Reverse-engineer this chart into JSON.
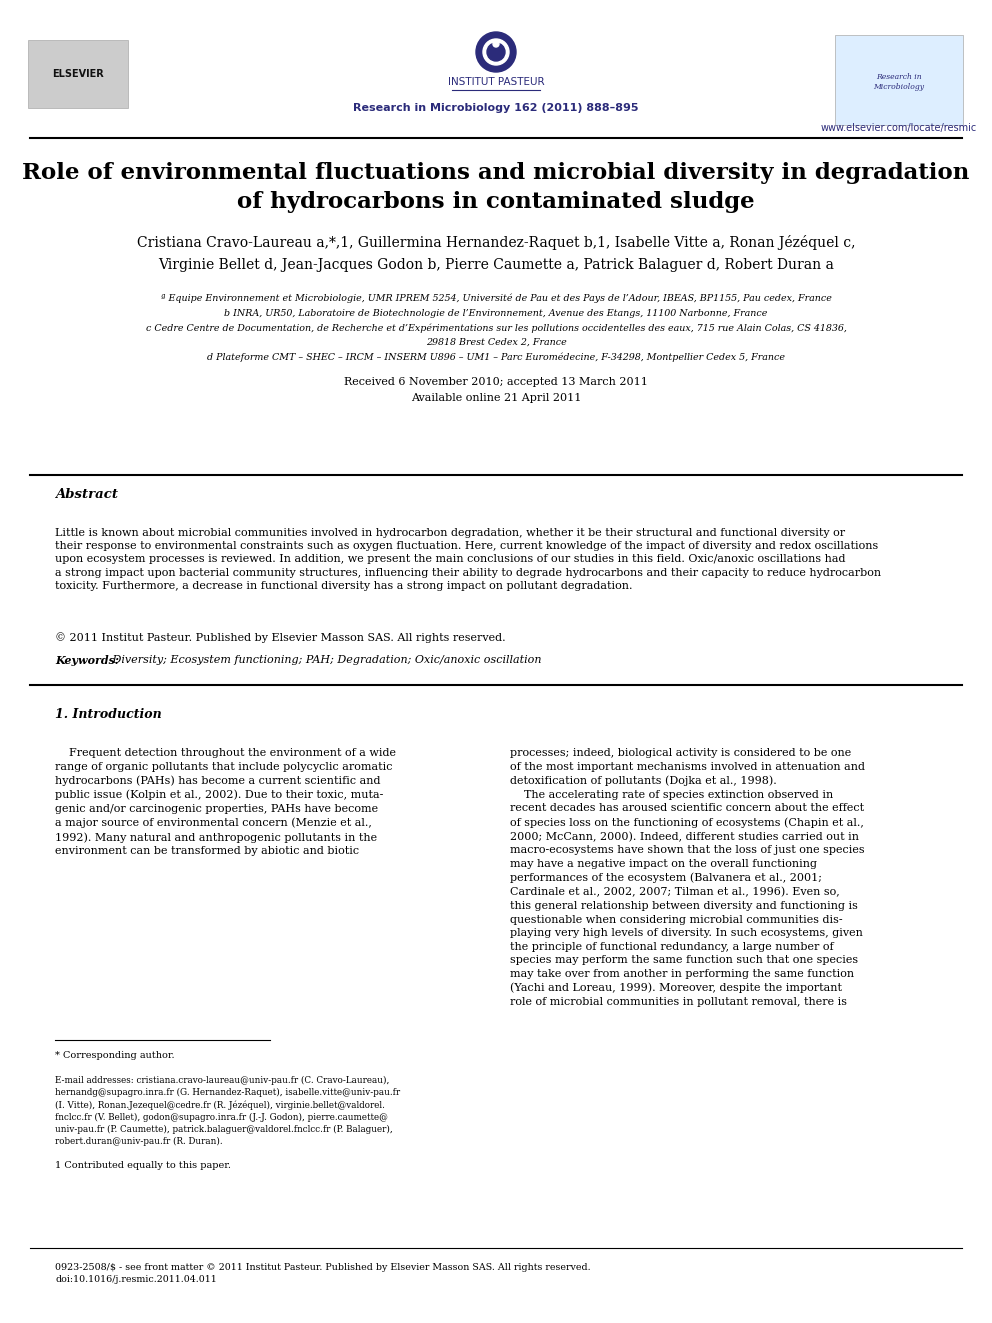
{
  "bg_color": "#ffffff",
  "title_line1": "Role of environmental fluctuations and microbial diversity in degradation",
  "title_line2": "of hydrocarbons in contaminated sludge",
  "journal_line": "Research in Microbiology 162 (2011) 888–895",
  "website": "www.elsevier.com/locate/resmic",
  "institut": "INSTITUT PASTEUR",
  "affil_a": "ª Equipe Environnement et Microbiologie, UMR IPREM 5254, Université de Pau et des Pays de l’Adour, IBEAS, BP1155, Pau cedex, France",
  "affil_b": "b INRA, UR50, Laboratoire de Biotechnologie de l’Environnement, Avenue des Etangs, 11100 Narbonne, France",
  "affil_c": "c Cedre Centre de Documentation, de Recherche et d’Expérimentations sur les pollutions occidentelles des eaux, 715 rue Alain Colas, CS 41836,",
  "affil_c2": "29818 Brest Cedex 2, France",
  "affil_d": "d Plateforme CMT – SHEC – IRCM – INSERM U896 – UM1 – Parc Euromédecine, F-34298, Montpellier Cedex 5, France",
  "received": "Received 6 November 2010; accepted 13 March 2011",
  "available": "Available online 21 April 2011",
  "abstract_label": "Abstract",
  "abstract_text": "Little is known about microbial communities involved in hydrocarbon degradation, whether it be their structural and functional diversity or\ntheir response to environmental constraints such as oxygen fluctuation. Here, current knowledge of the impact of diversity and redox oscillations\nupon ecosystem processes is reviewed. In addition, we present the main conclusions of our studies in this field. Oxic/anoxic oscillations had\na strong impact upon bacterial community structures, influencing their ability to degrade hydrocarbons and their capacity to reduce hydrocarbon\ntoxicity. Furthermore, a decrease in functional diversity has a strong impact on pollutant degradation.",
  "copyright": "© 2011 Institut Pasteur. Published by Elsevier Masson SAS. All rights reserved.",
  "keywords_label": "Keywords:",
  "keywords_text": " Diversity; Ecosystem functioning; PAH; Degradation; Oxic/anoxic oscillation",
  "section1_label": "1. Introduction",
  "intro_left": "    Frequent detection throughout the environment of a wide\nrange of organic pollutants that include polycyclic aromatic\nhydrocarbons (PAHs) has become a current scientific and\npublic issue (Kolpin et al., 2002). Due to their toxic, muta-\ngenic and/or carcinogenic properties, PAHs have become\na major source of environmental concern (Menzie et al.,\n1992). Many natural and anthropogenic pollutants in the\nenvironment can be transformed by abiotic and biotic",
  "intro_right": "processes; indeed, biological activity is considered to be one\nof the most important mechanisms involved in attenuation and\ndetoxification of pollutants (Dojka et al., 1998).\n    The accelerating rate of species extinction observed in\nrecent decades has aroused scientific concern about the effect\nof species loss on the functioning of ecosystems (Chapin et al.,\n2000; McCann, 2000). Indeed, different studies carried out in\nmacro-ecosystems have shown that the loss of just one species\nmay have a negative impact on the overall functioning\nperformances of the ecosystem (Balvanera et al., 2001;\nCardinale et al., 2002, 2007; Tilman et al., 1996). Even so,\nthis general relationship between diversity and functioning is\nquestionable when considering microbial communities dis-\nplaying very high levels of diversity. In such ecosystems, given\nthe principle of functional redundancy, a large number of\nspecies may perform the same function such that one species\nmay take over from another in performing the same function\n(Yachi and Loreau, 1999). Moreover, despite the important\nrole of microbial communities in pollutant removal, there is",
  "footnote_star": "* Corresponding author.",
  "footnote_email": "E-mail addresses: cristiana.cravo-laureau@univ-pau.fr (C. Cravo-Laureau),\nhernandg@supagro.inra.fr (G. Hernandez-Raquet), isabelle.vitte@univ-pau.fr\n(I. Vitte), Ronan.Jezequel@cedre.fr (R. Jézéquel), virginie.bellet@valdorel.\nfnclcc.fr (V. Bellet), godon@supagro.inra.fr (J.-J. Godon), pierre.caumette@\nuniv-pau.fr (P. Caumette), patrick.balaguer@valdorel.fnclcc.fr (P. Balaguer),\nrobert.duran@univ-pau.fr (R. Duran).",
  "footnote_1": "1 Contributed equally to this paper.",
  "bottom_text": "0923-2508/$ - see front matter © 2011 Institut Pasteur. Published by Elsevier Masson SAS. All rights reserved.\ndoi:10.1016/j.resmic.2011.04.011",
  "link_color": "#1155cc",
  "text_color": "#000000",
  "header_color": "#2b2b7a",
  "title_color": "#000000"
}
